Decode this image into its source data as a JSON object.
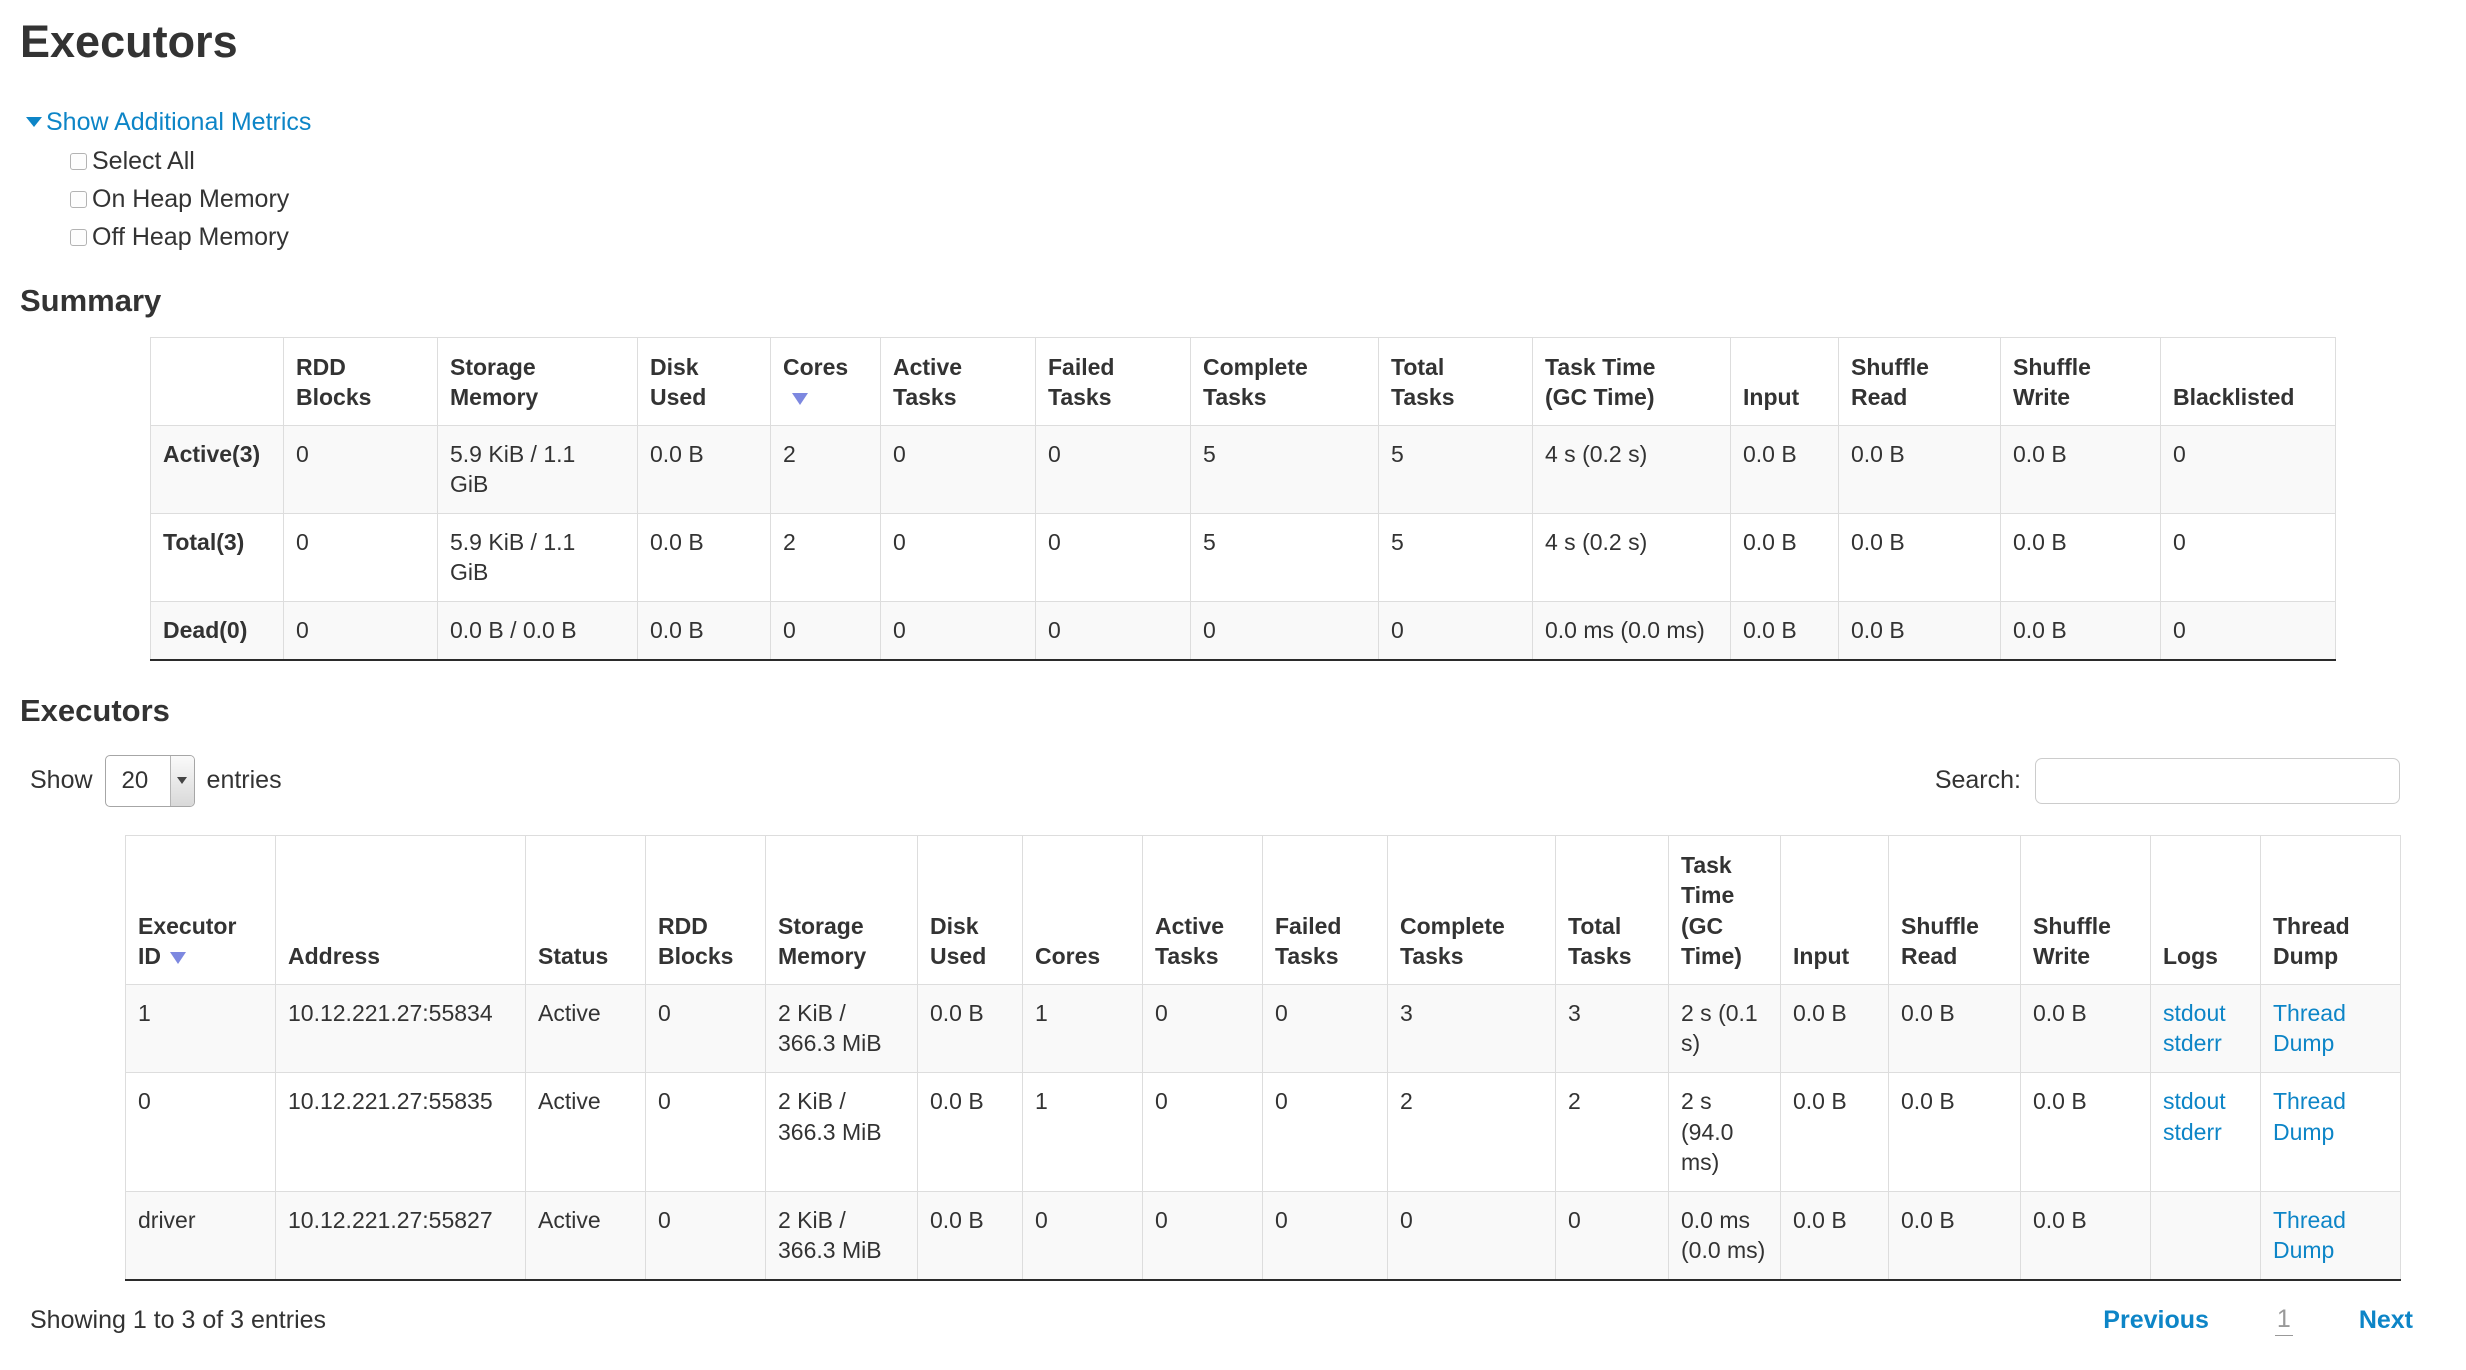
{
  "page": {
    "title": "Executors",
    "summary_heading": "Summary",
    "executors_heading": "Executors"
  },
  "metrics": {
    "toggle_label": "Show Additional Metrics",
    "options": [
      {
        "label": "Select All",
        "checked": false
      },
      {
        "label": "On Heap Memory",
        "checked": false
      },
      {
        "label": "Off Heap Memory",
        "checked": false
      }
    ]
  },
  "summary_table": {
    "columns": [
      "",
      "RDD\nBlocks",
      "Storage\nMemory",
      "Disk\nUsed",
      "Cores",
      "Active\nTasks",
      "Failed\nTasks",
      "Complete\nTasks",
      "Total\nTasks",
      "Task Time\n(GC Time)",
      "Input",
      "Shuffle\nRead",
      "Shuffle\nWrite",
      "Blacklisted"
    ],
    "fields": [
      "label",
      "rdd-blocks",
      "storage-memory",
      "disk-used",
      "cores",
      "active-tasks",
      "failed-tasks",
      "complete-tasks",
      "total-tasks",
      "task-time",
      "input",
      "shuffle-read",
      "shuffle-write",
      "blacklisted"
    ],
    "sort_col_index": 4,
    "bold_first_col": true,
    "link_cols": [],
    "rows": [
      [
        "Active(3)",
        "0",
        "5.9 KiB / 1.1\nGiB",
        "0.0 B",
        "2",
        "0",
        "0",
        "5",
        "5",
        "4 s (0.2 s)",
        "0.0 B",
        "0.0 B",
        "0.0 B",
        "0"
      ],
      [
        "Total(3)",
        "0",
        "5.9 KiB / 1.1\nGiB",
        "0.0 B",
        "2",
        "0",
        "0",
        "5",
        "5",
        "4 s (0.2 s)",
        "0.0 B",
        "0.0 B",
        "0.0 B",
        "0"
      ],
      [
        "Dead(0)",
        "0",
        "0.0 B / 0.0 B",
        "0.0 B",
        "0",
        "0",
        "0",
        "0",
        "0",
        "0.0 ms (0.0 ms)",
        "0.0 B",
        "0.0 B",
        "0.0 B",
        "0"
      ]
    ]
  },
  "table_controls": {
    "show_label": "Show",
    "page_size": "20",
    "entries_label": "entries",
    "search_label": "Search:",
    "search_value": ""
  },
  "executors_table": {
    "columns": [
      "Executor\nID",
      "Address",
      "Status",
      "RDD\nBlocks",
      "Storage\nMemory",
      "Disk\nUsed",
      "Cores",
      "Active\nTasks",
      "Failed\nTasks",
      "Complete\nTasks",
      "Total\nTasks",
      "Task\nTime\n(GC\nTime)",
      "Input",
      "Shuffle\nRead",
      "Shuffle\nWrite",
      "Logs",
      "Thread\nDump"
    ],
    "fields": [
      "executor-id",
      "address",
      "status",
      "rdd-blocks",
      "storage-memory",
      "disk-used",
      "cores",
      "active-tasks",
      "failed-tasks",
      "complete-tasks",
      "total-tasks",
      "task-time",
      "input",
      "shuffle-read",
      "shuffle-write",
      "logs",
      "thread-dump"
    ],
    "sort_col_index": 0,
    "bold_first_col": false,
    "link_cols": [
      16
    ],
    "rows": [
      [
        "1",
        "10.12.221.27:55834",
        "Active",
        "0",
        "2 KiB /\n366.3 MiB",
        "0.0 B",
        "1",
        "0",
        "0",
        "3",
        "3",
        "2 s (0.1\ns)",
        "0.0 B",
        "0.0 B",
        "0.0 B",
        [
          "stdout",
          "stderr"
        ],
        "Thread Dump"
      ],
      [
        "0",
        "10.12.221.27:55835",
        "Active",
        "0",
        "2 KiB /\n366.3 MiB",
        "0.0 B",
        "1",
        "0",
        "0",
        "2",
        "2",
        "2 s\n(94.0\nms)",
        "0.0 B",
        "0.0 B",
        "0.0 B",
        [
          "stdout",
          "stderr"
        ],
        "Thread Dump"
      ],
      [
        "driver",
        "10.12.221.27:55827",
        "Active",
        "0",
        "2 KiB /\n366.3 MiB",
        "0.0 B",
        "0",
        "0",
        "0",
        "0",
        "0",
        "0.0 ms\n(0.0 ms)",
        "0.0 B",
        "0.0 B",
        "0.0 B",
        [],
        "Thread Dump"
      ]
    ]
  },
  "footer": {
    "status": "Showing 1 to 3 of 3 entries",
    "previous_label": "Previous",
    "current_page": "1",
    "next_label": "Next"
  },
  "colors": {
    "link": "#0d85c7",
    "text": "#333333",
    "sort_arrow": "#7d88e0",
    "row_stripe": "#f9f9f9",
    "cell_border": "#dddddd"
  }
}
